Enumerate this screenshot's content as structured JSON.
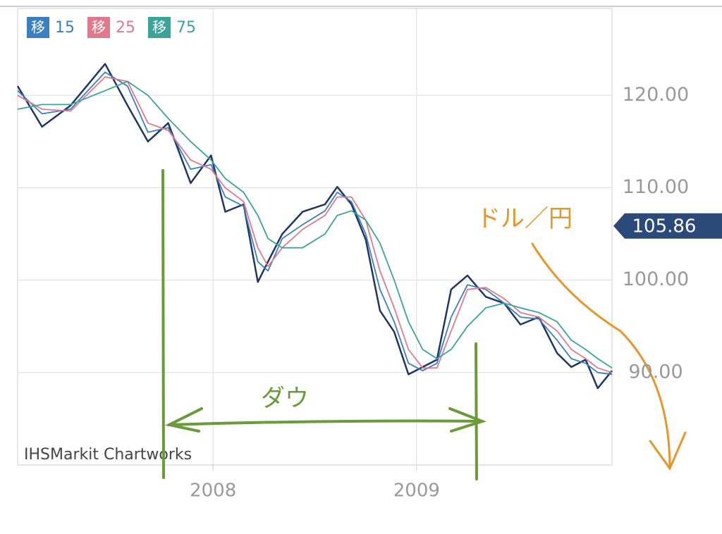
{
  "chart_data": {
    "type": "line",
    "legend_prefix": "移",
    "source": "IHSMarkit Chartworks",
    "annotations": [
      "ドル／円",
      "ダウ"
    ],
    "current_price": 105.86,
    "x": [
      2007.04,
      2007.16,
      2007.3,
      2007.47,
      2007.58,
      2007.68,
      2007.78,
      2007.89,
      2007.99,
      2008.06,
      2008.15,
      2008.22,
      2008.27,
      2008.34,
      2008.44,
      2008.55,
      2008.61,
      2008.68,
      2008.75,
      2008.82,
      2008.89,
      2008.96,
      2009.03,
      2009.1,
      2009.17,
      2009.25,
      2009.34,
      2009.43,
      2009.51,
      2009.6,
      2009.69,
      2009.76,
      2009.83,
      2009.89,
      2009.96
    ],
    "price": {
      "color": "#1f3564",
      "values": [
        121,
        116.6,
        118.9,
        123.4,
        118.9,
        115,
        117,
        110.5,
        113.5,
        107.4,
        108.2,
        99.8,
        102,
        105,
        107.4,
        108.2,
        110.1,
        108.2,
        104.4,
        96.7,
        94.4,
        89.8,
        90.6,
        91.4,
        99,
        100.5,
        98.2,
        97.5,
        95.2,
        96,
        92.1,
        90.6,
        91.4,
        88.3,
        90.2
      ]
    },
    "series": [
      {
        "name": "15",
        "color": "#3a7fbf",
        "values": [
          120.5,
          118,
          118.5,
          122.5,
          121,
          116,
          116.5,
          112,
          112.5,
          109,
          108,
          102,
          101,
          104.5,
          106,
          107.5,
          109.5,
          108.5,
          105,
          99,
          95.5,
          91,
          90.2,
          91,
          96,
          99.5,
          99,
          97.5,
          96,
          95.8,
          93.5,
          91.5,
          91,
          90,
          89.8
        ]
      },
      {
        "name": "25",
        "color": "#e07a8a",
        "values": [
          120,
          118.5,
          118.3,
          122,
          121.5,
          117,
          116.2,
          113,
          112,
          110,
          108.5,
          103.5,
          101.5,
          103.5,
          105.5,
          107,
          109,
          109,
          106.5,
          101,
          97,
          92.5,
          90.5,
          90.5,
          94.5,
          99,
          99.2,
          98,
          96.5,
          96,
          94.5,
          92.5,
          91.5,
          90.5,
          90
        ]
      },
      {
        "name": "75",
        "color": "#3aa39a",
        "values": [
          118.5,
          119,
          119,
          120.5,
          121.5,
          120,
          117.5,
          115,
          113,
          111,
          109.5,
          107,
          104.5,
          103.5,
          103.5,
          105,
          107,
          107.5,
          106.5,
          104,
          100,
          95.5,
          92.5,
          91.5,
          92.5,
          95,
          97,
          97.5,
          97,
          96.5,
          95.5,
          93.5,
          92.5,
          91.5,
          90.5
        ]
      }
    ],
    "xlim": [
      2007.04,
      2009.96
    ],
    "xticks": [
      2008,
      2009
    ],
    "ylim": [
      80,
      129.4
    ],
    "yticks": [
      {
        "value": 90,
        "label": "90.00"
      },
      {
        "value": 100,
        "label": "100.00"
      },
      {
        "value": 110,
        "label": "110.00"
      },
      {
        "value": 120,
        "label": "120.00"
      }
    ],
    "grid": true
  }
}
